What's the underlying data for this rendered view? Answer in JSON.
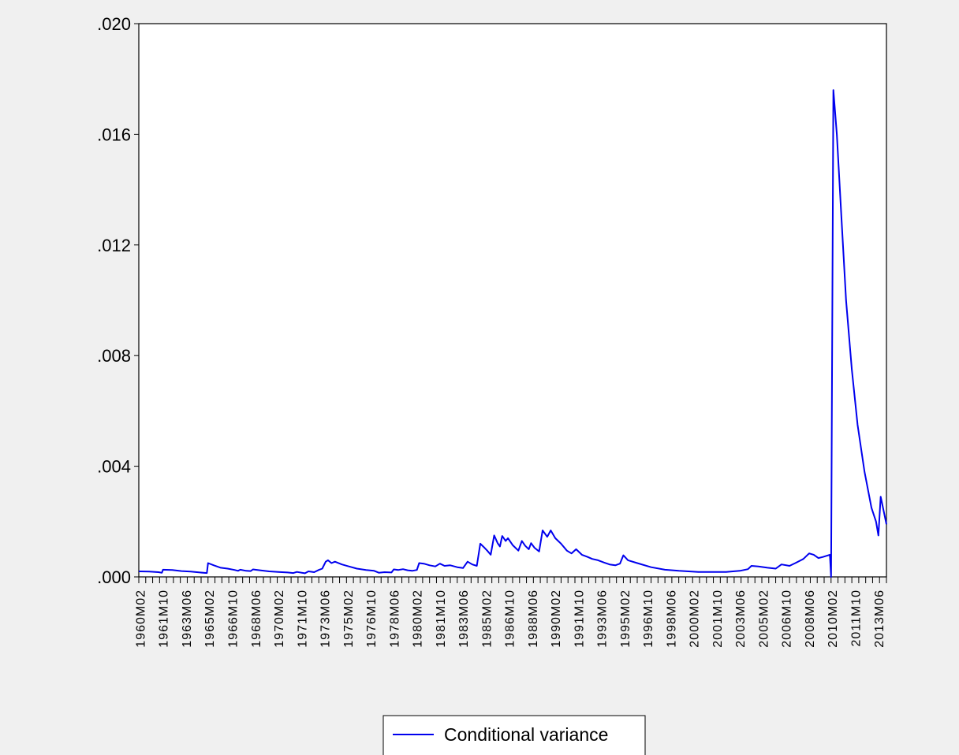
{
  "chart_data": {
    "type": "line",
    "title": "",
    "xlabel": "",
    "ylabel": "",
    "ylim": [
      0,
      0.02
    ],
    "xlim": [
      "1960M01",
      "2014M01"
    ],
    "yticks": [
      {
        "value": 0.0,
        "label": ".000"
      },
      {
        "value": 0.004,
        "label": ".004"
      },
      {
        "value": 0.008,
        "label": ".008"
      },
      {
        "value": 0.012,
        "label": ".012"
      },
      {
        "value": 0.016,
        "label": ".016"
      },
      {
        "value": 0.02,
        "label": ".020"
      }
    ],
    "xticks": [
      "1960M02",
      "1961M10",
      "1963M06",
      "1965M02",
      "1966M10",
      "1968M06",
      "1970M02",
      "1971M10",
      "1973M06",
      "1975M02",
      "1976M10",
      "1978M06",
      "1980M02",
      "1981M10",
      "1983M06",
      "1985M02",
      "1986M10",
      "1988M06",
      "1990M02",
      "1991M10",
      "1993M06",
      "1995M02",
      "1996M10",
      "1998M06",
      "2000M02",
      "2001M10",
      "2003M06",
      "2005M02",
      "2006M10",
      "2008M06",
      "2010M02",
      "2011M10",
      "2013M06"
    ],
    "grid": false,
    "legend_position": "bottom-center",
    "colors": {
      "series": "#0000ee",
      "plot_background": "#ffffff",
      "page_background": "#f0f0f0"
    },
    "series": [
      {
        "name": "Conditional variance",
        "points": [
          [
            "1960M01",
            0.0002
          ],
          [
            "1960M10",
            0.00019
          ],
          [
            "1961M06",
            0.00017
          ],
          [
            "1961M09",
            0.00015
          ],
          [
            "1961M10",
            0.00026
          ],
          [
            "1962M06",
            0.00025
          ],
          [
            "1963M02",
            0.00021
          ],
          [
            "1963M10",
            0.00019
          ],
          [
            "1964M06",
            0.00016
          ],
          [
            "1964M12",
            0.00014
          ],
          [
            "1965M01",
            0.0005
          ],
          [
            "1965M06",
            0.00042
          ],
          [
            "1965M12",
            0.00033
          ],
          [
            "1966M06",
            0.0003
          ],
          [
            "1966M12",
            0.00025
          ],
          [
            "1967M03",
            0.00022
          ],
          [
            "1967M05",
            0.00026
          ],
          [
            "1967M10",
            0.00022
          ],
          [
            "1968M02",
            0.00021
          ],
          [
            "1968M04",
            0.00027
          ],
          [
            "1968M10",
            0.00024
          ],
          [
            "1969M06",
            0.0002
          ],
          [
            "1970M02",
            0.00018
          ],
          [
            "1970M10",
            0.00016
          ],
          [
            "1971M03",
            0.00014
          ],
          [
            "1971M06",
            0.00018
          ],
          [
            "1972M01",
            0.00013
          ],
          [
            "1972M04",
            0.0002
          ],
          [
            "1972M09",
            0.00017
          ],
          [
            "1973M01",
            0.00025
          ],
          [
            "1973M04",
            0.0003
          ],
          [
            "1973M07",
            0.00055
          ],
          [
            "1973M09",
            0.0006
          ],
          [
            "1973M12",
            0.0005
          ],
          [
            "1974M03",
            0.00055
          ],
          [
            "1974M09",
            0.00045
          ],
          [
            "1975M03",
            0.00038
          ],
          [
            "1975M10",
            0.0003
          ],
          [
            "1976M06",
            0.00025
          ],
          [
            "1977M01",
            0.00022
          ],
          [
            "1977M05",
            0.00015
          ],
          [
            "1977M10",
            0.00017
          ],
          [
            "1978M04",
            0.00016
          ],
          [
            "1978M06",
            0.00027
          ],
          [
            "1978M10",
            0.00025
          ],
          [
            "1979M02",
            0.00028
          ],
          [
            "1979M06",
            0.00024
          ],
          [
            "1979M10",
            0.00022
          ],
          [
            "1980M02",
            0.00025
          ],
          [
            "1980M04",
            0.0005
          ],
          [
            "1980M08",
            0.00048
          ],
          [
            "1981M01",
            0.00042
          ],
          [
            "1981M06",
            0.00038
          ],
          [
            "1981M10",
            0.00048
          ],
          [
            "1982M02",
            0.0004
          ],
          [
            "1982M07",
            0.00042
          ],
          [
            "1983M01",
            0.00035
          ],
          [
            "1983M06",
            0.00032
          ],
          [
            "1983M10",
            0.00055
          ],
          [
            "1984M02",
            0.00045
          ],
          [
            "1984M06",
            0.0004
          ],
          [
            "1984M09",
            0.0012
          ],
          [
            "1984M12",
            0.00108
          ],
          [
            "1985M03",
            0.00095
          ],
          [
            "1985M06",
            0.0008
          ],
          [
            "1985M09",
            0.0015
          ],
          [
            "1985M12",
            0.00122
          ],
          [
            "1986M02",
            0.0011
          ],
          [
            "1986M04",
            0.00148
          ],
          [
            "1986M07",
            0.0013
          ],
          [
            "1986M09",
            0.0014
          ],
          [
            "1987M01",
            0.00115
          ],
          [
            "1987M06",
            0.00095
          ],
          [
            "1987M09",
            0.0013
          ],
          [
            "1987M12",
            0.00112
          ],
          [
            "1988M03",
            0.001
          ],
          [
            "1988M05",
            0.00122
          ],
          [
            "1988M08",
            0.00105
          ],
          [
            "1988M12",
            0.00092
          ],
          [
            "1989M03",
            0.00168
          ],
          [
            "1989M07",
            0.00145
          ],
          [
            "1989M10",
            0.00168
          ],
          [
            "1990M02",
            0.0014
          ],
          [
            "1990M07",
            0.0012
          ],
          [
            "1990M12",
            0.00095
          ],
          [
            "1991M04",
            0.00085
          ],
          [
            "1991M08",
            0.001
          ],
          [
            "1992M01",
            0.0008
          ],
          [
            "1992M06",
            0.00072
          ],
          [
            "1992M10",
            0.00065
          ],
          [
            "1993M03",
            0.0006
          ],
          [
            "1993M08",
            0.00052
          ],
          [
            "1994M01",
            0.00045
          ],
          [
            "1994M06",
            0.00042
          ],
          [
            "1994M10",
            0.00048
          ],
          [
            "1995M01",
            0.00078
          ],
          [
            "1995M05",
            0.0006
          ],
          [
            "1996M01",
            0.0005
          ],
          [
            "1997M01",
            0.00035
          ],
          [
            "1998M01",
            0.00026
          ],
          [
            "1999M01",
            0.00022
          ],
          [
            "2000M06",
            0.00018
          ],
          [
            "2002M06",
            0.00018
          ],
          [
            "2003M06",
            0.00022
          ],
          [
            "2004M01",
            0.00028
          ],
          [
            "2004M04",
            0.0004
          ],
          [
            "2004M10",
            0.00038
          ],
          [
            "2005M06",
            0.00033
          ],
          [
            "2006M01",
            0.0003
          ],
          [
            "2006M06",
            0.00045
          ],
          [
            "2007M01",
            0.0004
          ],
          [
            "2007M06",
            0.0005
          ],
          [
            "2008M01",
            0.00065
          ],
          [
            "2008M06",
            0.00085
          ],
          [
            "2008M10",
            0.0008
          ],
          [
            "2009M02",
            0.00068
          ],
          [
            "2009M06",
            0.00072
          ],
          [
            "2009M12",
            0.0008
          ],
          [
            "2010M01",
            0.0
          ],
          [
            "2010M03",
            0.0176
          ],
          [
            "2010M06",
            0.016
          ],
          [
            "2010M10",
            0.013
          ],
          [
            "2011M02",
            0.01
          ],
          [
            "2011M07",
            0.0075
          ],
          [
            "2011M12",
            0.0055
          ],
          [
            "2012M06",
            0.0038
          ],
          [
            "2012M12",
            0.0025
          ],
          [
            "2013M04",
            0.002
          ],
          [
            "2013M06",
            0.0015
          ],
          [
            "2013M08",
            0.0029
          ],
          [
            "2013M11",
            0.0023
          ],
          [
            "2014M01",
            0.0019
          ]
        ]
      }
    ]
  }
}
